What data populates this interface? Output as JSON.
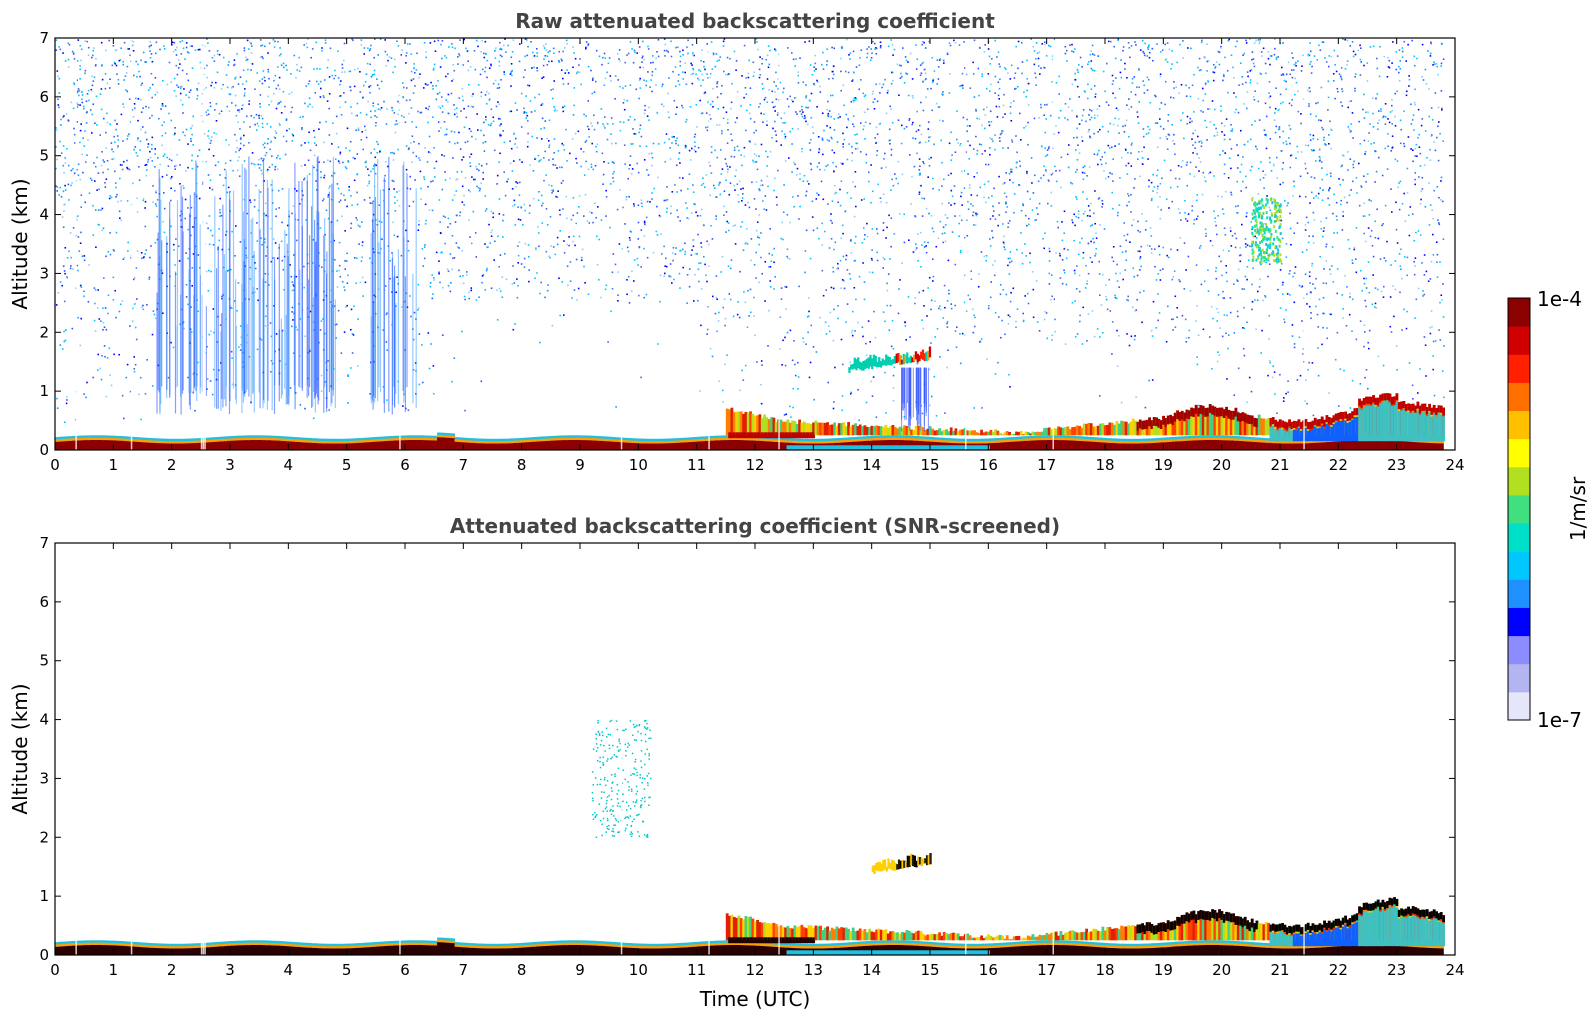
{
  "chart_data": [
    {
      "type": "heatmap",
      "title": "Raw attenuated backscattering coefficient",
      "xlabel": "",
      "ylabel": "Altitude (km)",
      "xlim": [
        0,
        24
      ],
      "ylim": [
        0,
        7
      ],
      "xticks": [
        0,
        1,
        2,
        3,
        4,
        5,
        6,
        7,
        8,
        9,
        10,
        11,
        12,
        13,
        14,
        15,
        16,
        17,
        18,
        19,
        20,
        21,
        22,
        23,
        24
      ],
      "yticks": [
        0,
        1,
        2,
        3,
        4,
        5,
        6,
        7
      ],
      "features": [
        {
          "kind": "surface_layer",
          "x": [
            0,
            23.8
          ],
          "top_km": 0.25
        },
        {
          "kind": "boundary_layer",
          "x": [
            11.5,
            23.8
          ],
          "top_km": [
            0.4,
            0.9
          ]
        },
        {
          "kind": "aerosol_layer",
          "x": [
            13.5,
            15.0
          ],
          "y": [
            1.3,
            1.7
          ]
        },
        {
          "kind": "aerosol_layer",
          "x": [
            20.5,
            21.0
          ],
          "y": [
            3.2,
            4.3
          ]
        },
        {
          "kind": "noise",
          "x": [
            0,
            23.8
          ],
          "y": [
            0.5,
            7
          ]
        }
      ]
    },
    {
      "type": "heatmap",
      "title": "Attenuated backscattering coefficient (SNR-screened)",
      "xlabel": "Time (UTC)",
      "ylabel": "Altitude (km)",
      "xlim": [
        0,
        24
      ],
      "ylim": [
        0,
        7
      ],
      "xticks": [
        0,
        1,
        2,
        3,
        4,
        5,
        6,
        7,
        8,
        9,
        10,
        11,
        12,
        13,
        14,
        15,
        16,
        17,
        18,
        19,
        20,
        21,
        22,
        23,
        24
      ],
      "yticks": [
        0,
        1,
        2,
        3,
        4,
        5,
        6,
        7
      ],
      "features": [
        {
          "kind": "surface_layer",
          "x": [
            0,
            23.8
          ],
          "top_km": 0.25
        },
        {
          "kind": "boundary_layer",
          "x": [
            11.5,
            23.8
          ],
          "top_km": [
            0.4,
            0.9
          ]
        },
        {
          "kind": "aerosol_layer",
          "x": [
            14.0,
            15.0
          ],
          "y": [
            1.35,
            1.7
          ]
        },
        {
          "kind": "sparse_points",
          "x": [
            9.2,
            10.2
          ],
          "y": [
            2.0,
            4.0
          ]
        }
      ]
    }
  ],
  "colorbar": {
    "label": "1/m/sr",
    "max_label": "1e-4",
    "min_label": "1e-7",
    "colors": [
      "#e6e6fa",
      "#b4b4f0",
      "#8c8cff",
      "#0000ff",
      "#1e90ff",
      "#00c8ff",
      "#00e0c8",
      "#40e080",
      "#b0e020",
      "#ffff00",
      "#ffc000",
      "#ff7000",
      "#ff2000",
      "#d00000",
      "#8b0000"
    ]
  }
}
